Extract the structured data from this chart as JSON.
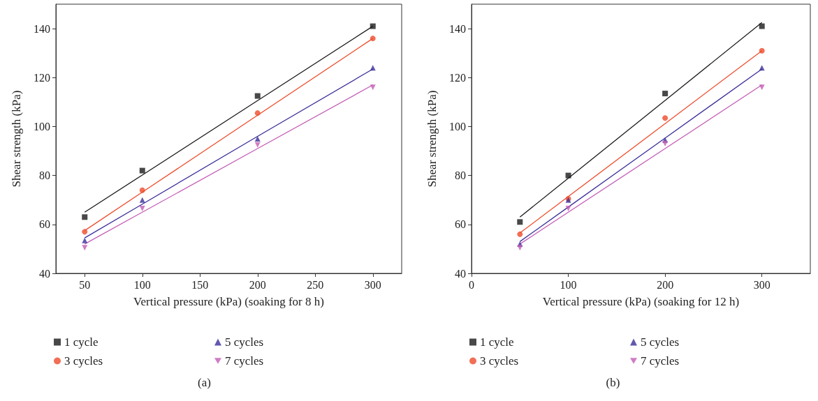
{
  "chart_data": [
    {
      "type": "scatter",
      "xlabel": "Vertical pressure (kPa) (soaking for 8 h)",
      "ylabel": "Shear strength (kPa)",
      "x": [
        50,
        100,
        200,
        300
      ],
      "xlim": [
        25,
        325
      ],
      "xticks": [
        50,
        100,
        150,
        200,
        250,
        300
      ],
      "ylim": [
        40,
        150
      ],
      "yticks": [
        40,
        60,
        80,
        100,
        120,
        140
      ],
      "grid": false,
      "legend": "bottom",
      "annotations": [
        "(a)"
      ],
      "series": [
        {
          "name": "1 cycle",
          "color": "#1a1a1a",
          "marker": "square",
          "values": [
            63,
            82,
            112.5,
            141
          ]
        },
        {
          "name": "3 cycles",
          "color": "#ee4b2b",
          "marker": "circle",
          "values": [
            57,
            74,
            105.5,
            136
          ]
        },
        {
          "name": "5 cycles",
          "color": "#3a2f99",
          "marker": "triangle",
          "values": [
            53.5,
            70,
            95,
            124
          ]
        },
        {
          "name": "7 cycles",
          "color": "#c45cb5",
          "marker": "triangle-down",
          "values": [
            50.5,
            66.5,
            92.5,
            116
          ]
        },
        {
          "type": "line",
          "color": "#1a1a1a",
          "marker": "none",
          "values": [
            65,
            80.2,
            110.6,
            141
          ]
        },
        {
          "type": "line",
          "color": "#ee4b2b",
          "marker": "none",
          "values": [
            57.5,
            73.2,
            104.6,
            136
          ]
        },
        {
          "type": "line",
          "color": "#3a2f99",
          "marker": "none",
          "values": [
            54.5,
            68.3,
            96,
            123.5
          ]
        },
        {
          "type": "line",
          "color": "#c45cb5",
          "marker": "none",
          "values": [
            52,
            65,
            91,
            117
          ]
        }
      ]
    },
    {
      "type": "scatter",
      "xlabel": "Vertical pressure (kPa) (soaking for 12 h)",
      "ylabel": "Shear strength (kPa)",
      "x": [
        50,
        100,
        200,
        300
      ],
      "xlim": [
        0,
        350
      ],
      "xticks": [
        0,
        100,
        200,
        300
      ],
      "ylim": [
        40,
        150
      ],
      "yticks": [
        40,
        60,
        80,
        100,
        120,
        140
      ],
      "grid": false,
      "legend": "bottom",
      "annotations": [
        "(b)"
      ],
      "series": [
        {
          "name": "1 cycle",
          "color": "#1a1a1a",
          "marker": "square",
          "values": [
            61,
            80,
            113.5,
            141
          ]
        },
        {
          "name": "3 cycles",
          "color": "#ee4b2b",
          "marker": "circle",
          "values": [
            56,
            70.5,
            103.5,
            131
          ]
        },
        {
          "name": "5 cycles",
          "color": "#3a2f99",
          "marker": "triangle",
          "values": [
            52,
            70,
            94.5,
            124
          ]
        },
        {
          "name": "7 cycles",
          "color": "#c45cb5",
          "marker": "triangle-down",
          "values": [
            50.5,
            66.5,
            93,
            116
          ]
        },
        {
          "type": "line",
          "color": "#1a1a1a",
          "marker": "none",
          "values": [
            63,
            78.9,
            110.7,
            142.5
          ]
        },
        {
          "type": "line",
          "color": "#ee4b2b",
          "marker": "none",
          "values": [
            56.5,
            71.4,
            101.2,
            131
          ]
        },
        {
          "type": "line",
          "color": "#3a2f99",
          "marker": "none",
          "values": [
            53,
            67.1,
            95.3,
            123.5
          ]
        },
        {
          "type": "line",
          "color": "#c45cb5",
          "marker": "none",
          "values": [
            52,
            65,
            91,
            117
          ]
        }
      ]
    }
  ]
}
